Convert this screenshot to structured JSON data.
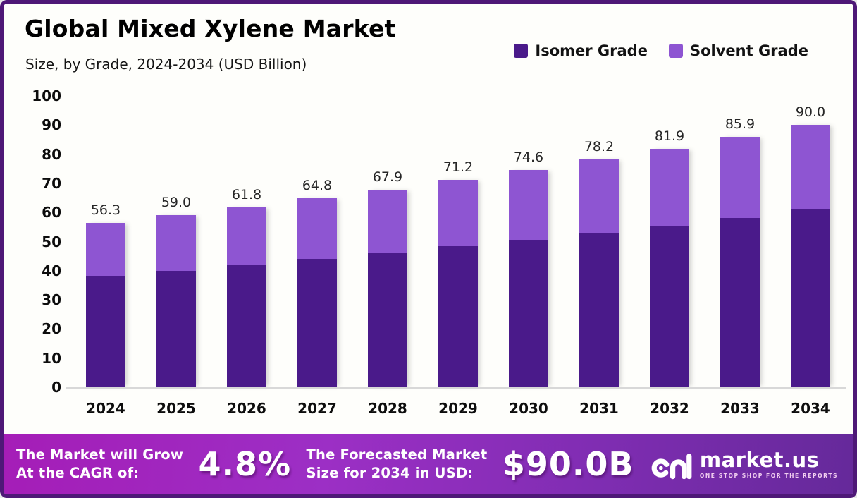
{
  "chart_data": {
    "type": "bar",
    "stacked": true,
    "title": "Global Mixed Xylene Market",
    "subtitle": "Size, by Grade, 2024-2034 (USD Billion)",
    "categories": [
      "2024",
      "2025",
      "2026",
      "2027",
      "2028",
      "2029",
      "2030",
      "2031",
      "2032",
      "2033",
      "2034"
    ],
    "series": [
      {
        "name": "Isomer Grade",
        "color": "#4A1A8A",
        "values": [
          38.2,
          40.0,
          41.9,
          44.0,
          46.2,
          48.4,
          50.6,
          53.0,
          55.5,
          58.2,
          61.0
        ]
      },
      {
        "name": "Solvent Grade",
        "color": "#8E55D2",
        "values": [
          18.1,
          19.0,
          19.9,
          20.8,
          21.7,
          22.8,
          24.0,
          25.2,
          26.4,
          27.7,
          29.0
        ]
      }
    ],
    "totals": [
      56.3,
      59.0,
      61.8,
      64.8,
      67.9,
      71.2,
      74.6,
      78.2,
      81.9,
      85.9,
      90.0
    ],
    "total_labels": [
      "56.3",
      "59.0",
      "61.8",
      "64.8",
      "67.9",
      "71.2",
      "74.6",
      "78.2",
      "81.9",
      "85.9",
      "90.0"
    ],
    "xlabel": "",
    "ylabel": "",
    "ylim": [
      0,
      100
    ],
    "yticks": [
      0,
      10,
      20,
      30,
      40,
      50,
      60,
      70,
      80,
      90,
      100
    ],
    "grid": false,
    "legend_position": "top-right"
  },
  "footer": {
    "cagr_line1": "The Market will Grow",
    "cagr_line2": "At the CAGR of:",
    "cagr_value": "4.8%",
    "forecast_line1": "The Forecasted Market",
    "forecast_line2": "Size for 2034 in USD:",
    "forecast_value": "$90.0B",
    "logo_text": "market.us",
    "logo_tagline": "ONE STOP SHOP FOR THE REPORTS"
  }
}
